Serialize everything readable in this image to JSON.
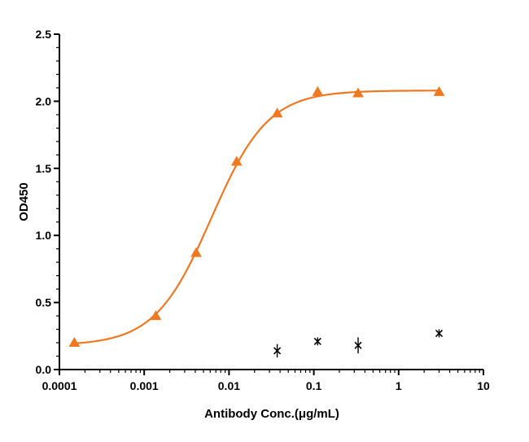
{
  "chart_data": {
    "type": "scatter",
    "title": "",
    "xlabel": "Antibody Conc.(μg/mL)",
    "ylabel": "OD450",
    "x_scale": "log",
    "xlim": [
      0.0001,
      10
    ],
    "ylim": [
      0,
      2.5
    ],
    "x_ticks": [
      0.0001,
      0.001,
      0.01,
      0.1,
      1,
      10
    ],
    "x_tick_labels": [
      "0.0001",
      "0.001",
      "0.01",
      "0.1",
      "1",
      "10"
    ],
    "y_ticks": [
      0,
      0.5,
      1.0,
      1.5,
      2.0,
      2.5
    ],
    "y_tick_labels": [
      "0.0",
      "0.5",
      "1.0",
      "1.5",
      "2.0",
      "2.5"
    ],
    "grid": false,
    "legend": "none",
    "series": [
      {
        "marker": "triangle",
        "color": "#F07820",
        "fit_curve": "sigmoidal",
        "x": [
          0.00015,
          0.00137,
          0.0041,
          0.0123,
          0.037,
          0.111,
          0.333,
          3.0
        ],
        "y": [
          0.2,
          0.4,
          0.87,
          1.55,
          1.91,
          2.07,
          2.06,
          2.07
        ]
      },
      {
        "marker": "x",
        "color": "#000000",
        "x": [
          0.037,
          0.111,
          0.333,
          3.0
        ],
        "y": [
          0.14,
          0.21,
          0.18,
          0.27
        ],
        "error": [
          0.05,
          0.03,
          0.06,
          0.03
        ]
      }
    ]
  }
}
